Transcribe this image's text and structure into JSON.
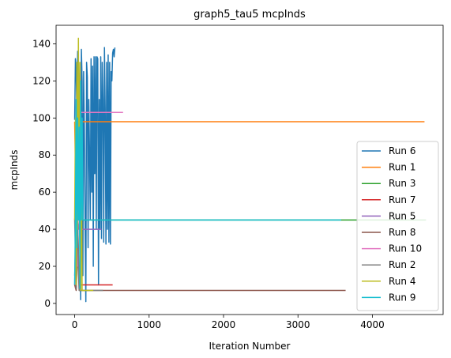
{
  "chart_data": {
    "type": "line",
    "title": "graph5_tau5 mcpInds",
    "xlabel": "Iteration Number",
    "ylabel": "mcpInds",
    "xlim": [
      -250,
      4950
    ],
    "ylim": [
      -6,
      150
    ],
    "xticks": [
      0,
      1000,
      2000,
      3000,
      4000
    ],
    "yticks": [
      0,
      20,
      40,
      60,
      80,
      100,
      120,
      140
    ],
    "grid": false,
    "legend_position": "center-right",
    "series": [
      {
        "name": "Run 6",
        "color": "#1f77b4",
        "x": [
          0,
          10,
          20,
          30,
          40,
          50,
          60,
          70,
          80,
          90,
          100,
          110,
          120,
          130,
          140,
          150,
          160,
          170,
          180,
          190,
          200,
          210,
          220,
          230,
          240,
          250,
          260,
          270,
          280,
          290,
          300,
          310,
          320,
          330,
          340,
          350,
          360,
          370,
          380,
          390,
          400,
          410,
          420,
          430,
          440,
          450,
          460,
          470,
          480,
          490,
          500,
          510,
          520,
          530,
          540
        ],
        "y": [
          99,
          132,
          126,
          100,
          136,
          130,
          110,
          45,
          2,
          137,
          120,
          15,
          125,
          95,
          40,
          1,
          130,
          122,
          30,
          110,
          80,
          45,
          132,
          60,
          128,
          20,
          133,
          70,
          133,
          40,
          133,
          132,
          10,
          110,
          40,
          133,
          35,
          130,
          110,
          33,
          138,
          105,
          32,
          130,
          40,
          134,
          33,
          130,
          32,
          125,
          120,
          135,
          137,
          133,
          138
        ]
      },
      {
        "name": "Run 1",
        "color": "#ff7f0e",
        "x": [
          0,
          20,
          40,
          60,
          80,
          100,
          200,
          1000,
          2000,
          3000,
          4000,
          4700
        ],
        "y": [
          98,
          50,
          120,
          45,
          98,
          98,
          98,
          98,
          98,
          98,
          98,
          98
        ]
      },
      {
        "name": "Run 3",
        "color": "#2ca02c",
        "x": [
          0,
          30,
          60,
          100,
          500,
          1000,
          2000,
          3000,
          4000,
          4720
        ],
        "y": [
          45,
          60,
          45,
          45,
          45,
          45,
          45,
          45,
          45,
          45
        ]
      },
      {
        "name": "Run 7",
        "color": "#d62728",
        "x": [
          0,
          20,
          40,
          60,
          80,
          100,
          300,
          510
        ],
        "y": [
          10,
          8,
          45,
          10,
          10,
          10,
          10,
          10
        ]
      },
      {
        "name": "Run 5",
        "color": "#9467bd",
        "x": [
          0,
          20,
          40,
          60,
          80,
          100,
          200,
          360
        ],
        "y": [
          15,
          40,
          45,
          40,
          40,
          40,
          40,
          40
        ]
      },
      {
        "name": "Run 8",
        "color": "#8c564b",
        "x": [
          0,
          20,
          40,
          60,
          80,
          100,
          1000,
          2000,
          3000,
          3640
        ],
        "y": [
          10,
          7,
          30,
          7,
          7,
          7,
          7,
          7,
          7,
          7
        ]
      },
      {
        "name": "Run 10",
        "color": "#e377c2",
        "x": [
          0,
          20,
          40,
          60,
          80,
          100,
          400,
          650
        ],
        "y": [
          10,
          53,
          20,
          100,
          103,
          103,
          103,
          103
        ]
      },
      {
        "name": "Run 2",
        "color": "#7f7f7f",
        "x": [
          0,
          20,
          40,
          60,
          80,
          100,
          300,
          380
        ],
        "y": [
          45,
          8,
          45,
          7,
          7,
          7,
          7,
          7
        ]
      },
      {
        "name": "Run 4",
        "color": "#bcbd22",
        "x": [
          0,
          10,
          20,
          30,
          40,
          50,
          60,
          70,
          80,
          90,
          100,
          110,
          120,
          150,
          200,
          250
        ],
        "y": [
          45,
          100,
          10,
          130,
          40,
          143,
          45,
          130,
          7,
          90,
          7,
          7,
          7,
          7,
          7,
          7
        ]
      },
      {
        "name": "Run 9",
        "color": "#17becf",
        "x": [
          0,
          10,
          20,
          30,
          40,
          50,
          60,
          70,
          80,
          90,
          100,
          110,
          130,
          200,
          500,
          1000,
          2000,
          3000,
          3580
        ],
        "y": [
          10,
          45,
          110,
          30,
          100,
          45,
          95,
          8,
          120,
          45,
          100,
          45,
          45,
          45,
          45,
          45,
          45,
          45,
          45
        ]
      }
    ]
  }
}
